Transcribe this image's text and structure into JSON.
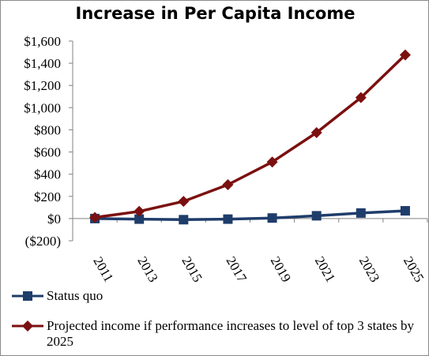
{
  "chart_data": {
    "type": "line",
    "title": "Increase in Per Capita Income",
    "xlabel": "",
    "ylabel": "",
    "categories": [
      "2011",
      "2013",
      "2015",
      "2017",
      "2019",
      "2021",
      "2023",
      "2025"
    ],
    "ylim": [
      -200,
      1600
    ],
    "yticks": [
      {
        "value": -200,
        "label": "($200)"
      },
      {
        "value": 0,
        "label": "$0"
      },
      {
        "value": 200,
        "label": "$200"
      },
      {
        "value": 400,
        "label": "$400"
      },
      {
        "value": 600,
        "label": "$600"
      },
      {
        "value": 800,
        "label": "$800"
      },
      {
        "value": 1000,
        "label": "$1,000"
      },
      {
        "value": 1200,
        "label": "$1,200"
      },
      {
        "value": 1400,
        "label": "$1,400"
      },
      {
        "value": 1600,
        "label": "$1,600"
      }
    ],
    "grid": false,
    "legend_position": "bottom",
    "series": [
      {
        "name": "Status quo",
        "marker": "square",
        "color": "#1F3D6B",
        "values": [
          0,
          -5,
          -10,
          -5,
          5,
          25,
          50,
          70
        ]
      },
      {
        "name": "Projected income if performance increases to level of top 3 states by 2025",
        "marker": "diamond",
        "color": "#7B1010",
        "values": [
          10,
          65,
          155,
          305,
          510,
          775,
          1090,
          1475
        ]
      }
    ]
  }
}
